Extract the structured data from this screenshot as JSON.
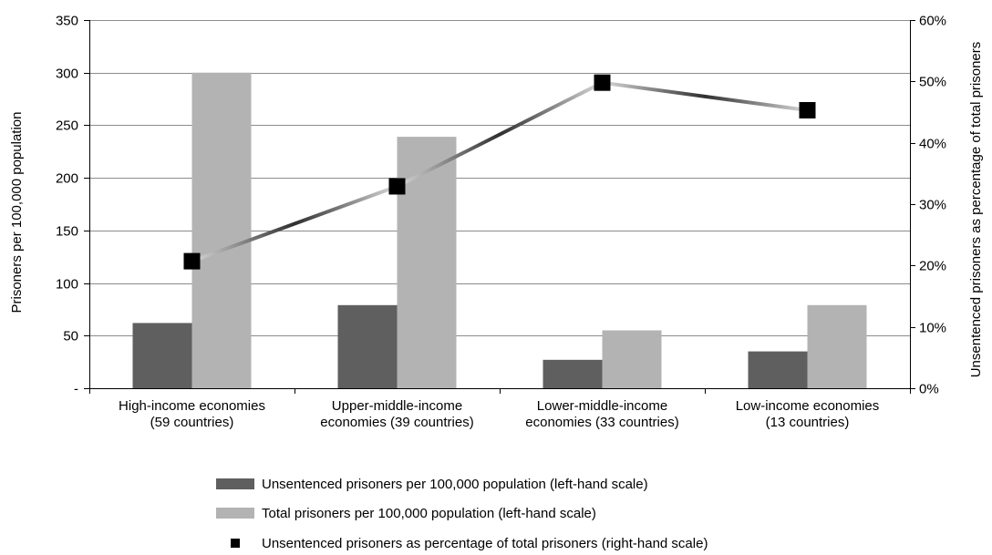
{
  "chart_data": {
    "type": "bar",
    "categories": [
      [
        "High-income economies",
        "(59 countries)"
      ],
      [
        "Upper-middle-income",
        "economies (39 countries)"
      ],
      [
        "Lower-middle-income",
        "economies (33 countries)"
      ],
      [
        "Low-income economies",
        "(13 countries)"
      ]
    ],
    "series": [
      {
        "name": "Unsentenced prisoners per 100,000 population (left-hand scale)",
        "type": "bar",
        "axis": "left",
        "color": "#5f5f5f",
        "values": [
          62,
          79,
          27,
          35
        ]
      },
      {
        "name": "Total prisoners per 100,000 population (left-hand scale)",
        "type": "bar",
        "axis": "left",
        "color": "#b3b3b3",
        "values": [
          300,
          239,
          55,
          79
        ]
      },
      {
        "name": "Unsentenced prisoners as percentage of total prisoners (right-hand scale)",
        "type": "line",
        "axis": "right",
        "color": "#7a7a7a",
        "marker_color": "#000000",
        "values": [
          20.7,
          32.9,
          49.8,
          45.3
        ]
      }
    ],
    "y_left": {
      "label": "Prisoners per 100,000 population",
      "ylim": [
        0,
        350
      ],
      "ticks": [
        0,
        50,
        100,
        150,
        200,
        250,
        300,
        350
      ],
      "tick_labels": [
        "-",
        "50",
        "100",
        "150",
        "200",
        "250",
        "300",
        "350"
      ]
    },
    "y_right": {
      "label": "Unsentenced prisoners as percentage of total prisoners",
      "ylim": [
        0,
        60
      ],
      "ticks": [
        0,
        10,
        20,
        30,
        40,
        50,
        60
      ],
      "tick_labels": [
        "0%",
        "10%",
        "20%",
        "30%",
        "40%",
        "50%",
        "60%"
      ]
    },
    "grid": true,
    "legend_position": "bottom"
  }
}
